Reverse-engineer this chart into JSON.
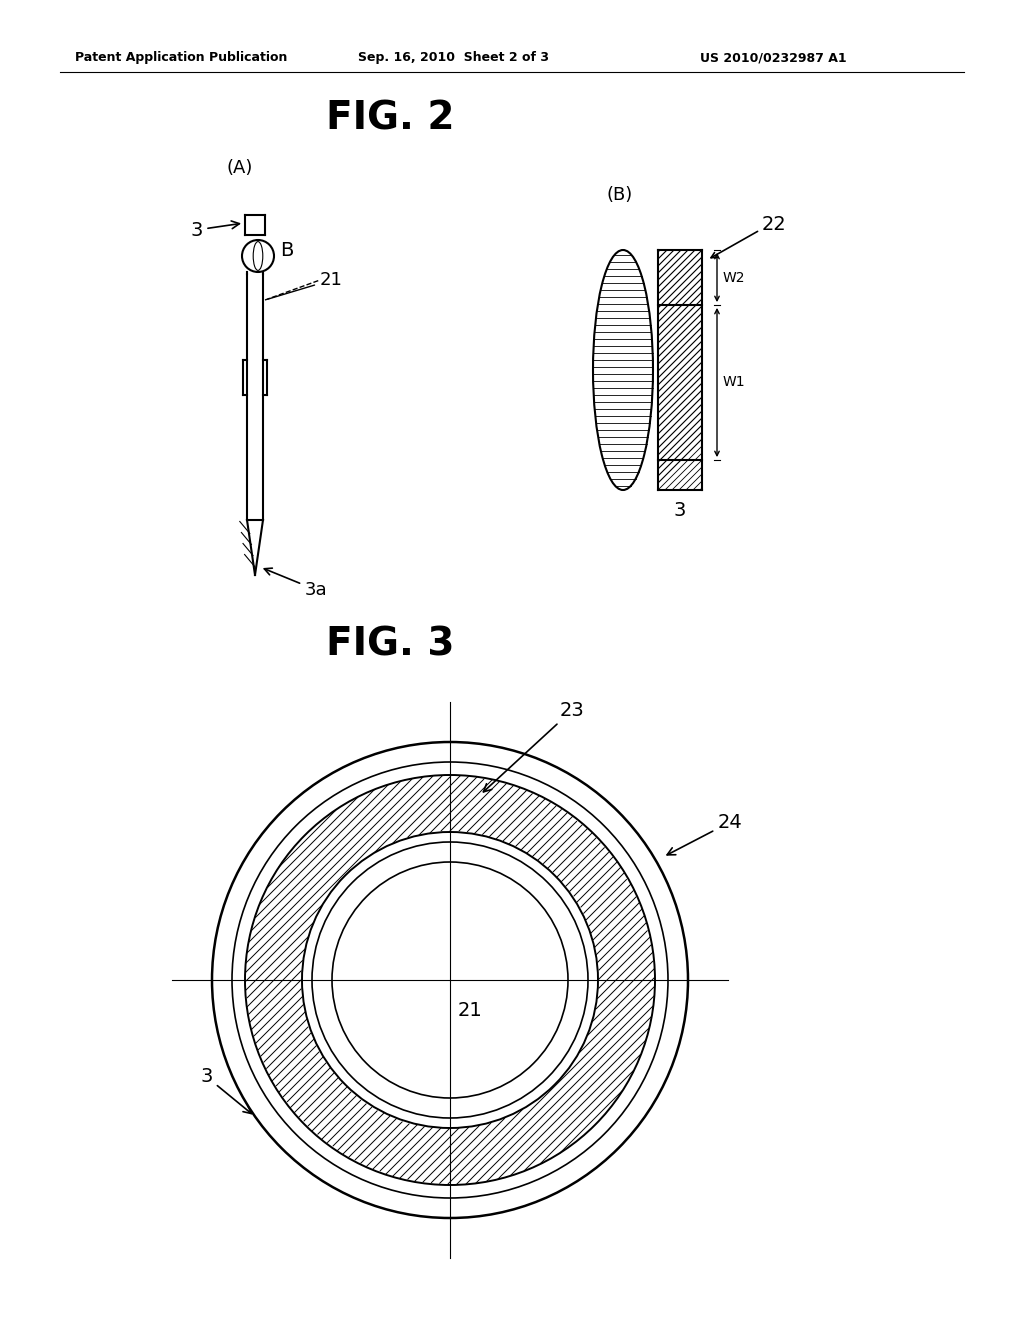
{
  "bg_color": "#ffffff",
  "text_color": "#000000",
  "header_left": "Patent Application Publication",
  "header_center": "Sep. 16, 2010  Sheet 2 of 3",
  "header_right": "US 2010/0232987 A1",
  "fig2_title": "FIG. 2",
  "fig3_title": "FIG. 3",
  "label_A": "(A)",
  "label_B": "(B)"
}
